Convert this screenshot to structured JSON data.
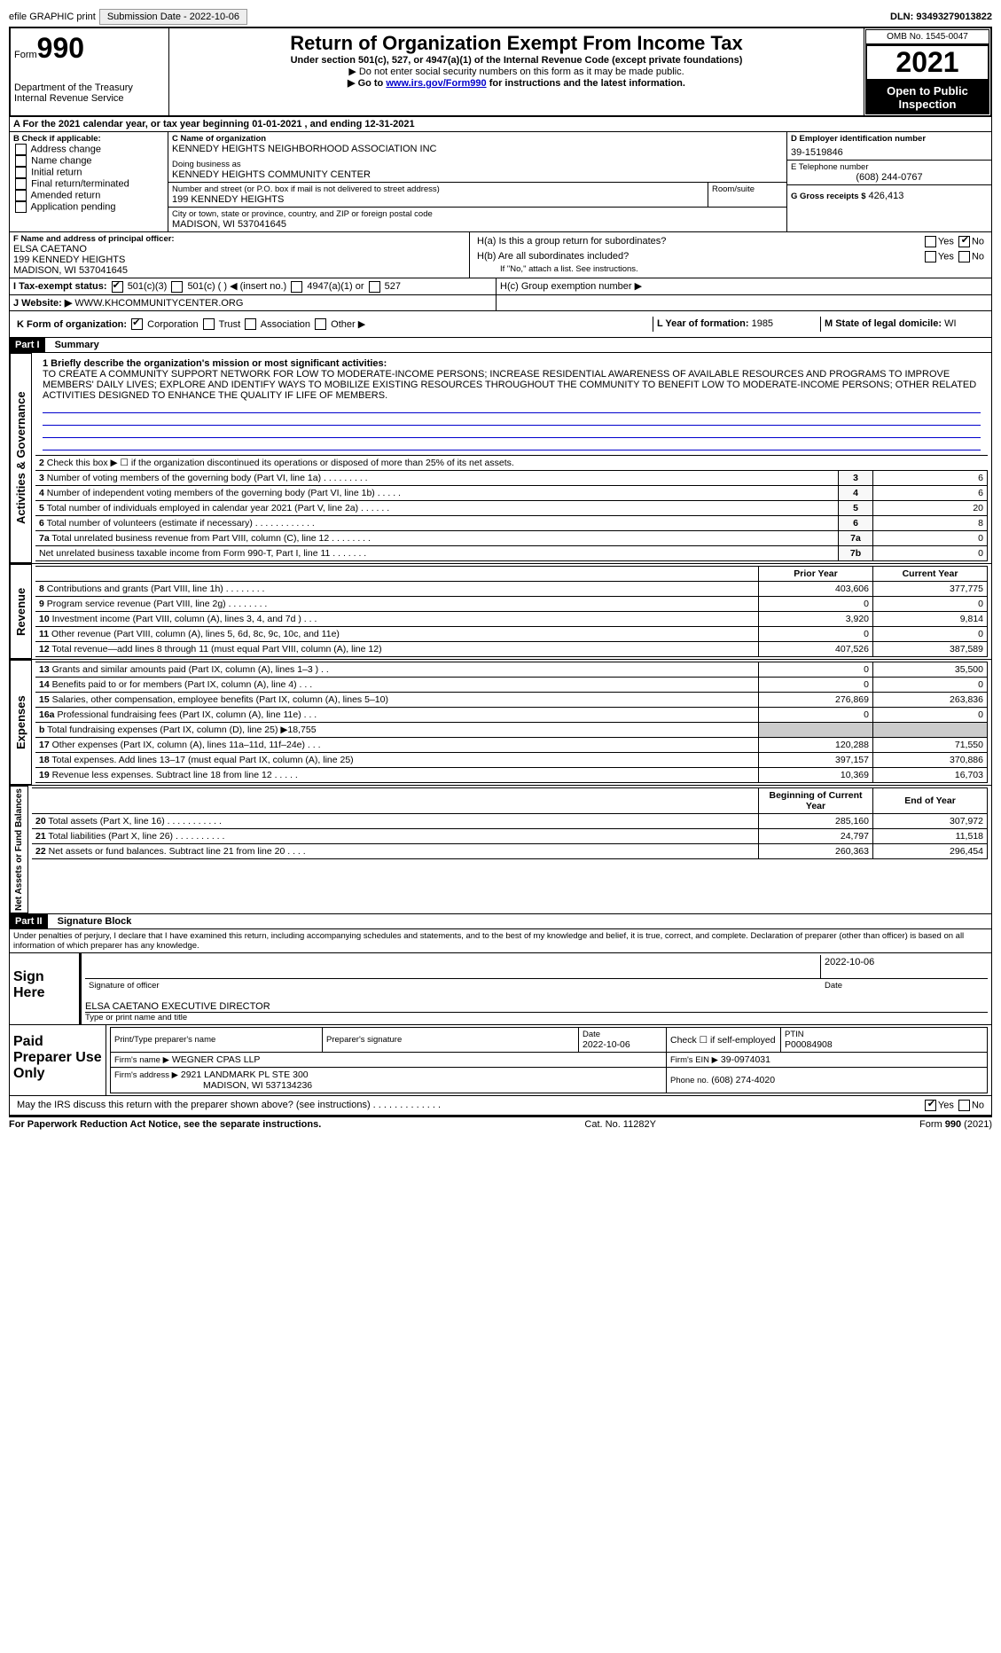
{
  "topbar": {
    "efile_label": "efile GRAPHIC print",
    "submission_label": "Submission Date - 2022-10-06",
    "dln_label": "DLN: 93493279013822"
  },
  "header": {
    "form_prefix": "Form",
    "form_number": "990",
    "dept": "Department of the Treasury",
    "irs": "Internal Revenue Service",
    "title": "Return of Organization Exempt From Income Tax",
    "subtitle": "Under section 501(c), 527, or 4947(a)(1) of the Internal Revenue Code (except private foundations)",
    "no_ssn": "▶ Do not enter social security numbers on this form as it may be made public.",
    "goto_prefix": "▶ Go to ",
    "goto_link": "www.irs.gov/Form990",
    "goto_suffix": " for instructions and the latest information.",
    "omb": "OMB No. 1545-0047",
    "year": "2021",
    "open_public": "Open to Public Inspection"
  },
  "period": {
    "a_line": "A For the 2021 calendar year, or tax year beginning 01-01-2021     , and ending 12-31-2021"
  },
  "boxB": {
    "label": "B Check if applicable:",
    "items": [
      "Address change",
      "Name change",
      "Initial return",
      "Final return/terminated",
      "Amended return",
      "Application pending"
    ]
  },
  "boxC": {
    "name_label": "C Name of organization",
    "org_name": "KENNEDY HEIGHTS NEIGHBORHOOD ASSOCIATION INC",
    "dba_label": "Doing business as",
    "dba": "KENNEDY HEIGHTS COMMUNITY CENTER",
    "street_label": "Number and street (or P.O. box if mail is not delivered to street address)",
    "room_label": "Room/suite",
    "street": "199 KENNEDY HEIGHTS",
    "city_label": "City or town, state or province, country, and ZIP or foreign postal code",
    "city": "MADISON, WI  537041645"
  },
  "boxD": {
    "label": "D Employer identification number",
    "value": "39-1519846"
  },
  "boxE": {
    "label": "E Telephone number",
    "value": "(608) 244-0767"
  },
  "boxG": {
    "label": "G Gross receipts $",
    "value": "426,413"
  },
  "boxF": {
    "label": "F  Name and address of principal officer:",
    "name": "ELSA CAETANO",
    "street": "199 KENNEDY HEIGHTS",
    "city": "MADISON, WI  537041645"
  },
  "boxH": {
    "ha": "H(a)  Is this a group return for subordinates?",
    "hb": "H(b)  Are all subordinates included?",
    "hb_note": "If \"No,\" attach a list. See instructions.",
    "hc": "H(c)  Group exemption number ▶",
    "yes": "Yes",
    "no": "No"
  },
  "taxexempt": {
    "i_label": "I  Tax-exempt status:",
    "opts": [
      "501(c)(3)",
      "501(c) (   ) ◀ (insert no.)",
      "4947(a)(1) or",
      "527"
    ]
  },
  "website": {
    "j_label": "J  Website: ▶",
    "value": "WWW.KHCOMMUNITYCENTER.ORG"
  },
  "boxK": {
    "label": "K Form of organization:",
    "opts": [
      "Corporation",
      "Trust",
      "Association",
      "Other ▶"
    ]
  },
  "boxL": {
    "label": "L Year of formation:",
    "value": "1985"
  },
  "boxM": {
    "label": "M State of legal domicile:",
    "value": "WI"
  },
  "part1": {
    "label": "Part I",
    "title": "Summary"
  },
  "mission": {
    "line1_label": "1  Briefly describe the organization's mission or most significant activities:",
    "text": "TO CREATE A COMMUNITY SUPPORT NETWORK FOR LOW TO MODERATE-INCOME PERSONS; INCREASE RESIDENTIAL AWARENESS OF AVAILABLE RESOURCES AND PROGRAMS TO IMPROVE MEMBERS' DAILY LIVES; EXPLORE AND IDENTIFY WAYS TO MOBILIZE EXISTING RESOURCES THROUGHOUT THE COMMUNITY TO BENEFIT LOW TO MODERATE-INCOME PERSONS; OTHER RELATED ACTIVITIES DESIGNED TO ENHANCE THE QUALITY IF LIFE OF MEMBERS."
  },
  "gov_rows": [
    {
      "n": "2",
      "text": "Check this box ▶ ☐  if the organization discontinued its operations or disposed of more than 25% of its net assets.",
      "num": "",
      "val": ""
    },
    {
      "n": "3",
      "text": "Number of voting members of the governing body (Part VI, line 1a)   .    .    .    .    .    .    .    .    .",
      "num": "3",
      "val": "6"
    },
    {
      "n": "4",
      "text": "Number of independent voting members of the governing body (Part VI, line 1b)   .    .    .    .    .",
      "num": "4",
      "val": "6"
    },
    {
      "n": "5",
      "text": "Total number of individuals employed in calendar year 2021 (Part V, line 2a)   .    .    .    .    .    .",
      "num": "5",
      "val": "20"
    },
    {
      "n": "6",
      "text": "Total number of volunteers (estimate if necessary)   .    .    .    .    .    .    .    .    .    .    .    .",
      "num": "6",
      "val": "8"
    },
    {
      "n": "7a",
      "text": "Total unrelated business revenue from Part VIII, column (C), line 12   .    .    .    .    .    .    .    .",
      "num": "7a",
      "val": "0"
    },
    {
      "n": "",
      "text": "Net unrelated business taxable income from Form 990-T, Part I, line 11   .    .    .    .    .    .    .",
      "num": "7b",
      "val": "0"
    }
  ],
  "yearhdr": {
    "prior": "Prior Year",
    "current": "Current Year"
  },
  "revenue_rows": [
    {
      "n": "8",
      "text": "Contributions and grants (Part VIII, line 1h)   .    .    .    .    .    .    .    .",
      "py": "403,606",
      "cy": "377,775"
    },
    {
      "n": "9",
      "text": "Program service revenue (Part VIII, line 2g)   .    .    .    .    .    .    .    .",
      "py": "0",
      "cy": "0"
    },
    {
      "n": "10",
      "text": "Investment income (Part VIII, column (A), lines 3, 4, and 7d )   .    .    .",
      "py": "3,920",
      "cy": "9,814"
    },
    {
      "n": "11",
      "text": "Other revenue (Part VIII, column (A), lines 5, 6d, 8c, 9c, 10c, and 11e)",
      "py": "0",
      "cy": "0"
    },
    {
      "n": "12",
      "text": "Total revenue—add lines 8 through 11 (must equal Part VIII, column (A), line 12)",
      "py": "407,526",
      "cy": "387,589"
    }
  ],
  "expense_rows": [
    {
      "n": "13",
      "text": "Grants and similar amounts paid (Part IX, column (A), lines 1–3 )   .    .",
      "py": "0",
      "cy": "35,500"
    },
    {
      "n": "14",
      "text": "Benefits paid to or for members (Part IX, column (A), line 4)   .    .    .",
      "py": "0",
      "cy": "0"
    },
    {
      "n": "15",
      "text": "Salaries, other compensation, employee benefits (Part IX, column (A), lines 5–10)",
      "py": "276,869",
      "cy": "263,836"
    },
    {
      "n": "16a",
      "text": "Professional fundraising fees (Part IX, column (A), line 11e)   .    .    .",
      "py": "0",
      "cy": "0"
    },
    {
      "n": "b",
      "text": "Total fundraising expenses (Part IX, column (D), line 25) ▶18,755",
      "py": "",
      "cy": "",
      "grey": true
    },
    {
      "n": "17",
      "text": "Other expenses (Part IX, column (A), lines 11a–11d, 11f–24e)   .    .    .",
      "py": "120,288",
      "cy": "71,550"
    },
    {
      "n": "18",
      "text": "Total expenses. Add lines 13–17 (must equal Part IX, column (A), line 25)",
      "py": "397,157",
      "cy": "370,886"
    },
    {
      "n": "19",
      "text": "Revenue less expenses. Subtract line 18 from line 12   .    .    .    .    .",
      "py": "10,369",
      "cy": "16,703"
    }
  ],
  "balhdr": {
    "begin": "Beginning of Current Year",
    "end": "End of Year"
  },
  "balance_rows": [
    {
      "n": "20",
      "text": "Total assets (Part X, line 16)   .    .    .    .    .    .    .    .    .    .    .",
      "py": "285,160",
      "cy": "307,972"
    },
    {
      "n": "21",
      "text": "Total liabilities (Part X, line 26)   .    .    .    .    .    .    .    .    .    .",
      "py": "24,797",
      "cy": "11,518"
    },
    {
      "n": "22",
      "text": "Net assets or fund balances. Subtract line 21 from line 20   .    .    .    .",
      "py": "260,363",
      "cy": "296,454"
    }
  ],
  "vlabels": {
    "gov": "Activities & Governance",
    "rev": "Revenue",
    "exp": "Expenses",
    "bal": "Net Assets or Fund Balances"
  },
  "part2": {
    "label": "Part II",
    "title": "Signature Block"
  },
  "sig": {
    "declaration": "Under penalties of perjury, I declare that I have examined this return, including accompanying schedules and statements, and to the best of my knowledge and belief, it is true, correct, and complete. Declaration of preparer (other than officer) is based on all information of which preparer has any knowledge.",
    "sign_here": "Sign Here",
    "sig_officer": "Signature of officer",
    "date": "Date",
    "date_val": "2022-10-06",
    "name_title": "ELSA CAETANO  EXECUTIVE DIRECTOR",
    "type_name": "Type or print name and title"
  },
  "preparer": {
    "label": "Paid Preparer Use Only",
    "print_name": "Print/Type preparer's name",
    "prep_sig": "Preparer's signature",
    "date_label": "Date",
    "date_val": "2022-10-06",
    "check_self": "Check ☐ if self-employed",
    "ptin_label": "PTIN",
    "ptin": "P00084908",
    "firm_name_label": "Firm's name    ▶",
    "firm_name": "WEGNER CPAS LLP",
    "firm_ein_label": "Firm's EIN ▶",
    "firm_ein": "39-0974031",
    "firm_addr_label": "Firm's address ▶",
    "firm_addr1": "2921 LANDMARK PL STE 300",
    "firm_addr2": "MADISON, WI  537134236",
    "phone_label": "Phone no.",
    "phone": "(608) 274-4020"
  },
  "discuss": "May the IRS discuss this return with the preparer shown above? (see instructions)   .    .    .    .    .    .    .    .    .    .    .    .    .",
  "footer": {
    "left": "For Paperwork Reduction Act Notice, see the separate instructions.",
    "mid": "Cat. No. 11282Y",
    "right": "Form 990 (2021)"
  }
}
